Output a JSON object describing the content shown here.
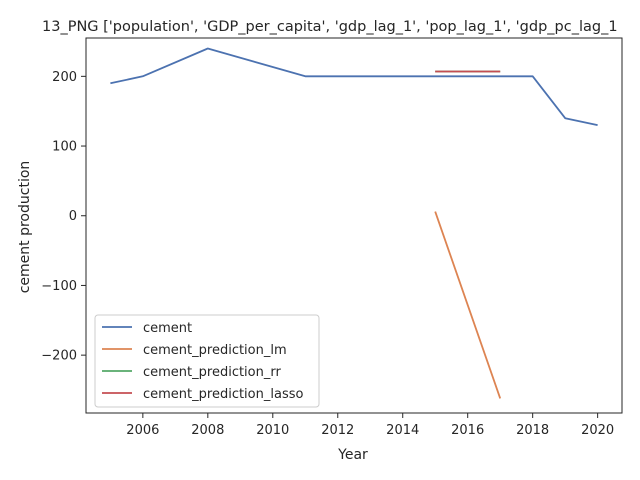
{
  "chart_data": {
    "type": "line",
    "title": "13_PNG ['population', 'GDP_per_capita', 'gdp_lag_1', 'pop_lag_1', 'gdp_pc_lag_1",
    "xlabel": "Year",
    "ylabel": "cement production",
    "xlim": [
      2004.25,
      2020.75
    ],
    "ylim": [
      -283,
      255
    ],
    "xticks": [
      2006,
      2008,
      2010,
      2012,
      2014,
      2016,
      2018,
      2020
    ],
    "xtick_labels": [
      "2006",
      "2008",
      "2010",
      "2012",
      "2014",
      "2016",
      "2018",
      "2020"
    ],
    "yticks": [
      -200,
      -100,
      0,
      100,
      200
    ],
    "ytick_labels": [
      "−200",
      "−100",
      "0",
      "100",
      "200"
    ],
    "grid": false,
    "legend": {
      "position": "lower-left",
      "entries": [
        "cement",
        "cement_prediction_lm",
        "cement_prediction_rr",
        "cement_prediction_lasso"
      ]
    },
    "series": [
      {
        "name": "cement",
        "color": "#4c72b0",
        "points": [
          [
            2005,
            190
          ],
          [
            2006,
            200
          ],
          [
            2008,
            240
          ],
          [
            2011,
            200
          ],
          [
            2018,
            200
          ],
          [
            2019,
            140
          ],
          [
            2020,
            130
          ]
        ]
      },
      {
        "name": "cement_prediction_lm",
        "color": "#dd8452",
        "points": [
          [
            2015,
            6
          ],
          [
            2017,
            -262
          ]
        ]
      },
      {
        "name": "cement_prediction_rr",
        "color": "#55a868",
        "points": [
          [
            2015,
            207
          ],
          [
            2017,
            207
          ]
        ]
      },
      {
        "name": "cement_prediction_lasso",
        "color": "#c44e52",
        "points": [
          [
            2015,
            207
          ],
          [
            2017,
            207
          ]
        ]
      }
    ]
  }
}
